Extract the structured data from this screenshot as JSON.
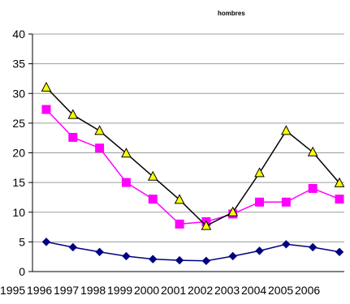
{
  "chart_data": {
    "type": "line",
    "title": "hombres",
    "xlabel": "",
    "ylabel": "",
    "x_tick_labels": [
      "1995",
      "1996",
      "1997",
      "1998",
      "1999",
      "2000",
      "2001",
      "2002",
      "2003",
      "2004",
      "2005",
      "2006"
    ],
    "ylim": [
      0,
      40
    ],
    "y_ticks": [
      0,
      5,
      10,
      15,
      20,
      25,
      30,
      35,
      40
    ],
    "grid": true,
    "legend": "none",
    "series": [
      {
        "marker": "diamond",
        "color": "#000080",
        "line_color": "#000080",
        "values": [
          5.0,
          4.1,
          3.3,
          2.6,
          2.1,
          1.9,
          1.8,
          2.6,
          3.5,
          4.6,
          4.1,
          3.3
        ]
      },
      {
        "marker": "square",
        "color": "#FF00FF",
        "line_color": "#FF00FF",
        "values": [
          27.3,
          22.6,
          20.8,
          15.0,
          12.2,
          8.0,
          8.4,
          9.7,
          11.7,
          11.7,
          14.0,
          12.2
        ]
      },
      {
        "marker": "triangle",
        "color": "#FFFF00",
        "line_color": "#000000",
        "values": [
          31.0,
          26.4,
          23.7,
          19.9,
          16.0,
          12.1,
          7.7,
          10.0,
          16.6,
          23.7,
          20.1,
          14.9
        ]
      }
    ]
  }
}
